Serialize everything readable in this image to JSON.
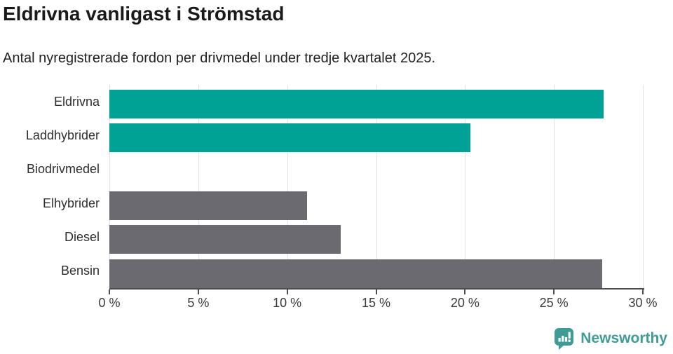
{
  "header": {
    "title": "Eldrivna vanligast i Strömstad",
    "subtitle": "Antal nyregistrerade fordon per drivmedel under tredje kvartalet 2025."
  },
  "chart_data": {
    "type": "bar",
    "orientation": "horizontal",
    "title": "Eldrivna vanligast i Strömstad",
    "subtitle": "Antal nyregistrerade fordon per drivmedel under tredje kvartalet 2025.",
    "categories": [
      "Eldrivna",
      "Laddhybrider",
      "Biodrivmedel",
      "Elhybrider",
      "Diesel",
      "Bensin"
    ],
    "values": [
      27.8,
      20.3,
      0,
      11.1,
      13.0,
      27.7
    ],
    "unit": "%",
    "bar_colors": [
      "#00a296",
      "#00a296",
      "#00a296",
      "#6c6a71",
      "#6c6a71",
      "#6c6a71"
    ],
    "xlim": [
      0,
      30
    ],
    "x_ticks": [
      {
        "value": 0,
        "label": "0 %"
      },
      {
        "value": 5,
        "label": "5 %"
      },
      {
        "value": 10,
        "label": "10 %"
      },
      {
        "value": 15,
        "label": "15 %"
      },
      {
        "value": 20,
        "label": "20 %"
      },
      {
        "value": 25,
        "label": "25 %"
      },
      {
        "value": 30,
        "label": "30 %"
      }
    ],
    "grid": true,
    "gridline_color": "#e2e2e2",
    "axis_color": "#4d4d4d",
    "legend": "none",
    "accent_color": "#00a296",
    "neutral_color": "#6c6a71"
  },
  "footer": {
    "brand": "Newsworthy",
    "brand_color": "#3f9c95",
    "logo_icon": "bar-chart-speech-bubble-icon"
  }
}
